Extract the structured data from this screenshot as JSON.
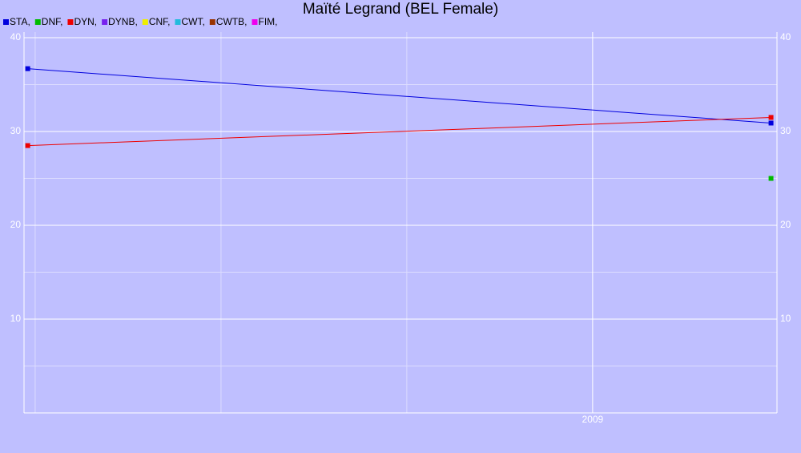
{
  "chart_data": {
    "type": "line",
    "title": "Maïté Legrand (BEL Female)",
    "series": [
      {
        "name": "STA,",
        "color": "#0000dd",
        "x": [
          2008.24,
          2009.24
        ],
        "values": [
          36.7,
          30.9
        ]
      },
      {
        "name": "DNF,",
        "color": "#00bb00",
        "x": [
          2009.24
        ],
        "values": [
          25
        ]
      },
      {
        "name": "DYN,",
        "color": "#ee0000",
        "x": [
          2008.24,
          2009.24
        ],
        "values": [
          28.5,
          31.5
        ]
      },
      {
        "name": "DYNB,",
        "color": "#7722ee",
        "x": [],
        "values": []
      },
      {
        "name": "CNF,",
        "color": "#eeee00",
        "x": [],
        "values": []
      },
      {
        "name": "CWT,",
        "color": "#22bbdd",
        "x": [],
        "values": []
      },
      {
        "name": "CWTB,",
        "color": "#993300",
        "x": [],
        "values": []
      },
      {
        "name": "FIM,",
        "color": "#ee00ee",
        "x": [],
        "values": []
      }
    ],
    "xlim": [
      2008.235,
      2009.248
    ],
    "xticks": [
      {
        "value": 2009,
        "label": "2009"
      }
    ],
    "xminor": [
      2008.25,
      2008.5,
      2008.75
    ],
    "ylim": [
      0,
      40.6
    ],
    "yticks": [
      10,
      20,
      30,
      40
    ],
    "yminor": [
      5,
      15,
      25,
      35
    ],
    "grid": true
  }
}
